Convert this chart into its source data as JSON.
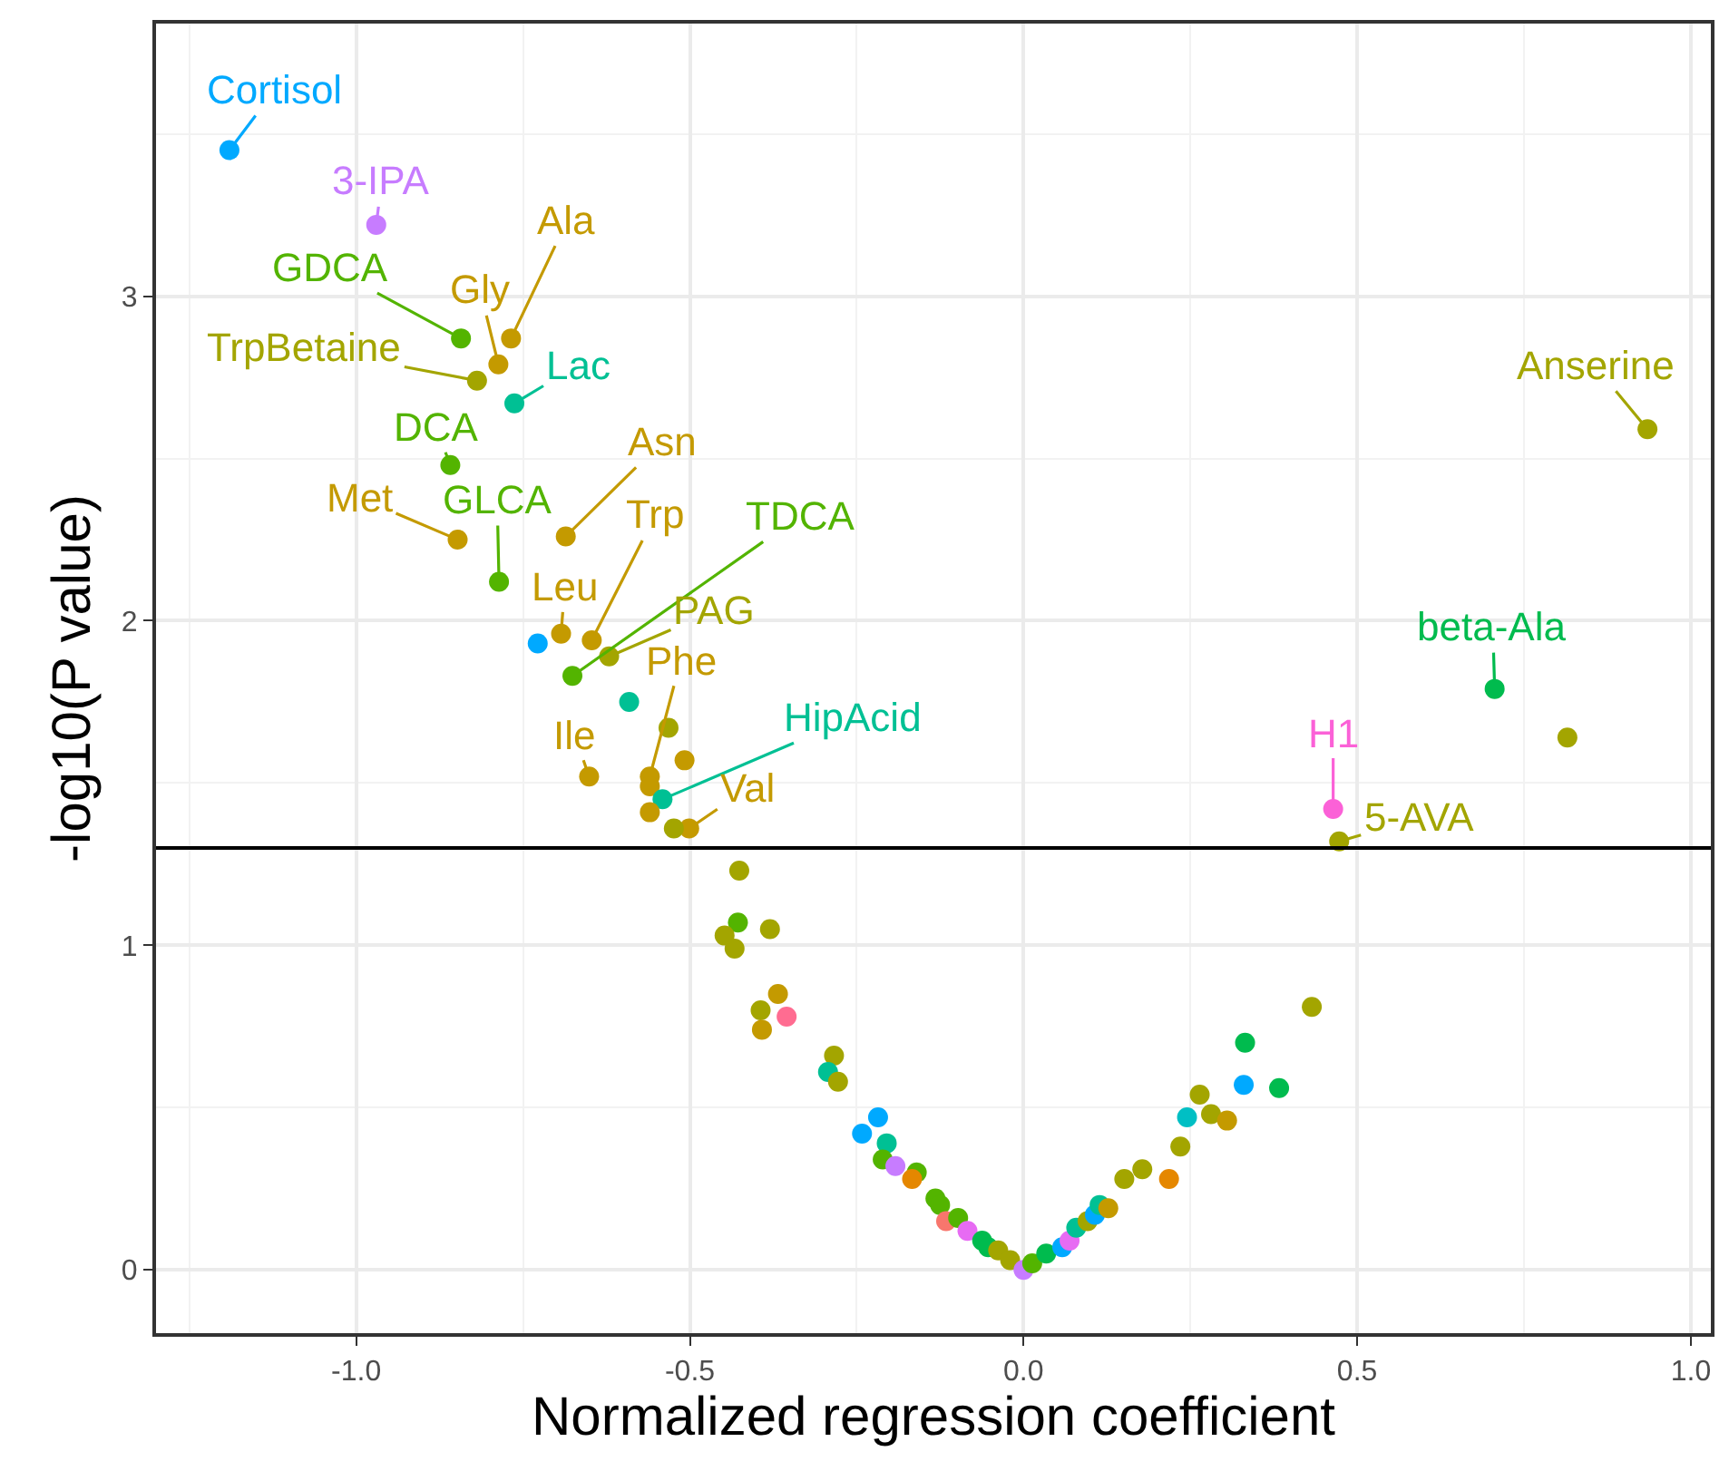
{
  "chart_data": {
    "type": "scatter",
    "xlabel": "Normalized regression coefficient",
    "ylabel": "-log10(P value)",
    "xlim": [
      -1.3,
      1.03
    ],
    "ylim": [
      -0.195,
      3.84
    ],
    "xticks": [
      {
        "value": -1.0,
        "label": "-1.0"
      },
      {
        "value": -0.5,
        "label": "-0.5"
      },
      {
        "value": 0,
        "label": "0.0"
      },
      {
        "value": 0.5,
        "label": "0.5"
      },
      {
        "value": 1.0,
        "label": "1.0"
      }
    ],
    "yticks": [
      0,
      1,
      2,
      3
    ],
    "grid": true,
    "marker": "circle",
    "ref_lines": [
      {
        "axis": "y",
        "value": 1.3,
        "color": "#000000"
      }
    ],
    "series": [
      {
        "x": [
          -1.19,
          -0.97,
          -0.843,
          -0.768,
          -0.787,
          -0.819,
          -0.763,
          -0.859,
          -0.848,
          -0.686,
          -0.786,
          -0.728,
          -0.693,
          -0.647,
          -0.621,
          -0.676,
          -0.591,
          -0.532,
          -0.56,
          -0.508,
          -0.56,
          -0.651,
          -0.541,
          -0.56,
          -0.501,
          -0.524,
          0.935,
          0.706,
          0.815,
          0.464,
          0.473,
          -0.426,
          -0.428,
          -0.448,
          -0.433,
          -0.38,
          -0.368,
          -0.394,
          -0.355,
          -0.392,
          -0.284,
          -0.293,
          -0.278,
          -0.218,
          -0.242,
          -0.205,
          -0.211,
          -0.192,
          -0.16,
          -0.167,
          -0.132,
          -0.125,
          -0.116,
          -0.098,
          -0.084,
          -0.062,
          -0.053,
          -0.038,
          -0.02,
          0.0,
          0.013,
          0.034,
          0.058,
          0.069,
          0.079,
          0.096,
          0.107,
          0.114,
          0.127,
          0.151,
          0.178,
          0.218,
          0.235,
          0.245,
          0.264,
          0.281,
          0.305,
          0.33,
          0.332,
          0.383,
          0.432
        ],
        "values": [
          3.45,
          3.22,
          2.87,
          2.87,
          2.79,
          2.74,
          2.67,
          2.48,
          2.25,
          2.26,
          2.12,
          1.93,
          1.96,
          1.94,
          1.89,
          1.83,
          1.75,
          1.67,
          1.52,
          1.57,
          1.49,
          1.52,
          1.45,
          1.41,
          1.36,
          1.36,
          2.59,
          1.79,
          1.64,
          1.42,
          1.32,
          1.23,
          1.07,
          1.03,
          0.99,
          1.05,
          0.85,
          0.8,
          0.78,
          0.74,
          0.66,
          0.61,
          0.58,
          0.47,
          0.42,
          0.39,
          0.34,
          0.32,
          0.3,
          0.28,
          0.22,
          0.2,
          0.15,
          0.16,
          0.12,
          0.09,
          0.07,
          0.06,
          0.03,
          0.0,
          0.02,
          0.05,
          0.07,
          0.09,
          0.13,
          0.15,
          0.17,
          0.2,
          0.19,
          0.28,
          0.31,
          0.28,
          0.38,
          0.47,
          0.54,
          0.48,
          0.46,
          0.57,
          0.7,
          0.56,
          0.81
        ],
        "colors": [
          "#00a9ff",
          "#c77cff",
          "#53b400",
          "#c49a00",
          "#c49a00",
          "#a3a500",
          "#00c094",
          "#53b400",
          "#c49a00",
          "#c49a00",
          "#53b400",
          "#00a9ff",
          "#c49a00",
          "#c49a00",
          "#a3a500",
          "#53b400",
          "#00c094",
          "#a3a500",
          "#c49a00",
          "#c49a00",
          "#c49a00",
          "#c49a00",
          "#00c094",
          "#c49a00",
          "#c49a00",
          "#a3a500",
          "#a3a500",
          "#00bb4e",
          "#a3a500",
          "#fb61d7",
          "#a3a500",
          "#a3a500",
          "#53b400",
          "#a3a500",
          "#a3a500",
          "#a3a500",
          "#c49a00",
          "#a3a500",
          "#ff6c91",
          "#c49a00",
          "#a3a500",
          "#00c094",
          "#a3a500",
          "#00a9ff",
          "#00a9ff",
          "#00c094",
          "#53b400",
          "#c77cff",
          "#53b400",
          "#e58700",
          "#53b400",
          "#53b400",
          "#f8766d",
          "#53b400",
          "#e76bf3",
          "#00bb4e",
          "#00bb4e",
          "#a3a500",
          "#a3a500",
          "#c77cff",
          "#53b400",
          "#00bb4e",
          "#00a9ff",
          "#e76bf3",
          "#00c094",
          "#a3a500",
          "#00a9ff",
          "#00c094",
          "#c49a00",
          "#a3a500",
          "#a3a500",
          "#e58700",
          "#a3a500",
          "#00bfc4",
          "#a3a500",
          "#a3a500",
          "#c49a00",
          "#00a9ff",
          "#00bb4e",
          "#00bb4e",
          "#a3a500"
        ]
      }
    ],
    "annotations": [
      {
        "text": "Cortisol",
        "x": -1.19,
        "y": 3.45
      },
      {
        "text": "3-IPA",
        "x": -0.97,
        "y": 3.22
      },
      {
        "text": "GDCA",
        "x": -0.843,
        "y": 2.87
      },
      {
        "text": "Ala",
        "x": -0.768,
        "y": 2.87
      },
      {
        "text": "Gly",
        "x": -0.787,
        "y": 2.79
      },
      {
        "text": "TrpBetaine",
        "x": -0.819,
        "y": 2.74
      },
      {
        "text": "Lac",
        "x": -0.763,
        "y": 2.67
      },
      {
        "text": "DCA",
        "x": -0.859,
        "y": 2.48
      },
      {
        "text": "Met",
        "x": -0.848,
        "y": 2.25
      },
      {
        "text": "Asn",
        "x": -0.686,
        "y": 2.26
      },
      {
        "text": "GLCA",
        "x": -0.786,
        "y": 2.12
      },
      {
        "text": "Leu",
        "x": -0.693,
        "y": 1.96
      },
      {
        "text": "Trp",
        "x": -0.647,
        "y": 1.94
      },
      {
        "text": "TDCA",
        "x": -0.676,
        "y": 1.83
      },
      {
        "text": "PAG",
        "x": -0.621,
        "y": 1.89
      },
      {
        "text": "Phe",
        "x": -0.56,
        "y": 1.52
      },
      {
        "text": "Ile",
        "x": -0.651,
        "y": 1.52
      },
      {
        "text": "HipAcid",
        "x": -0.541,
        "y": 1.45
      },
      {
        "text": "Val",
        "x": -0.501,
        "y": 1.36
      },
      {
        "text": "Anserine",
        "x": 0.935,
        "y": 2.59
      },
      {
        "text": "beta-Ala",
        "x": 0.706,
        "y": 1.79
      },
      {
        "text": "H1",
        "x": 0.464,
        "y": 1.42
      },
      {
        "text": "5-AVA",
        "x": 0.473,
        "y": 1.32
      }
    ]
  }
}
